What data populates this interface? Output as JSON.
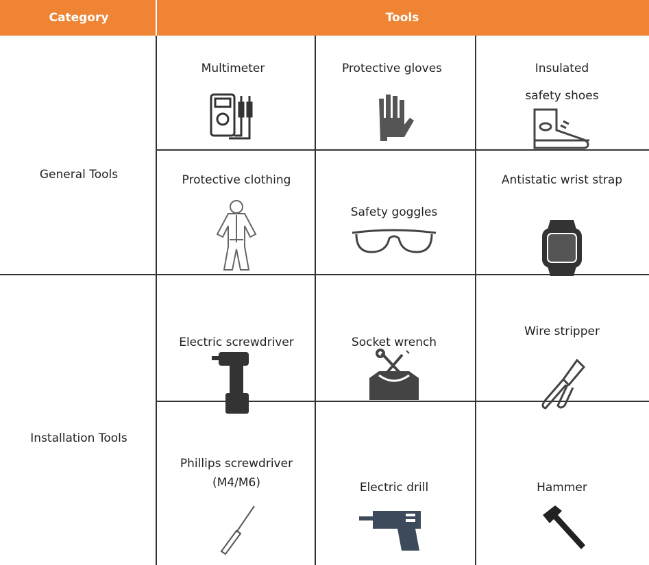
{
  "table": {
    "header": [
      "Category",
      "Tools"
    ],
    "rows": [
      {
        "category": "General Tools",
        "tools": [
          "Multimeter",
          "Protective gloves",
          "Insulated safety shoes",
          "Protective clothing",
          "Safety goggles",
          "Antistatic wrist strap"
        ]
      },
      {
        "category": "Installation Tools",
        "tools": [
          "Electric screwdriver",
          "Socket wrench",
          "Wire stripper",
          "Phillips screwdriver (M4/M6)",
          "Electric drill",
          "Hammer"
        ]
      }
    ]
  }
}
